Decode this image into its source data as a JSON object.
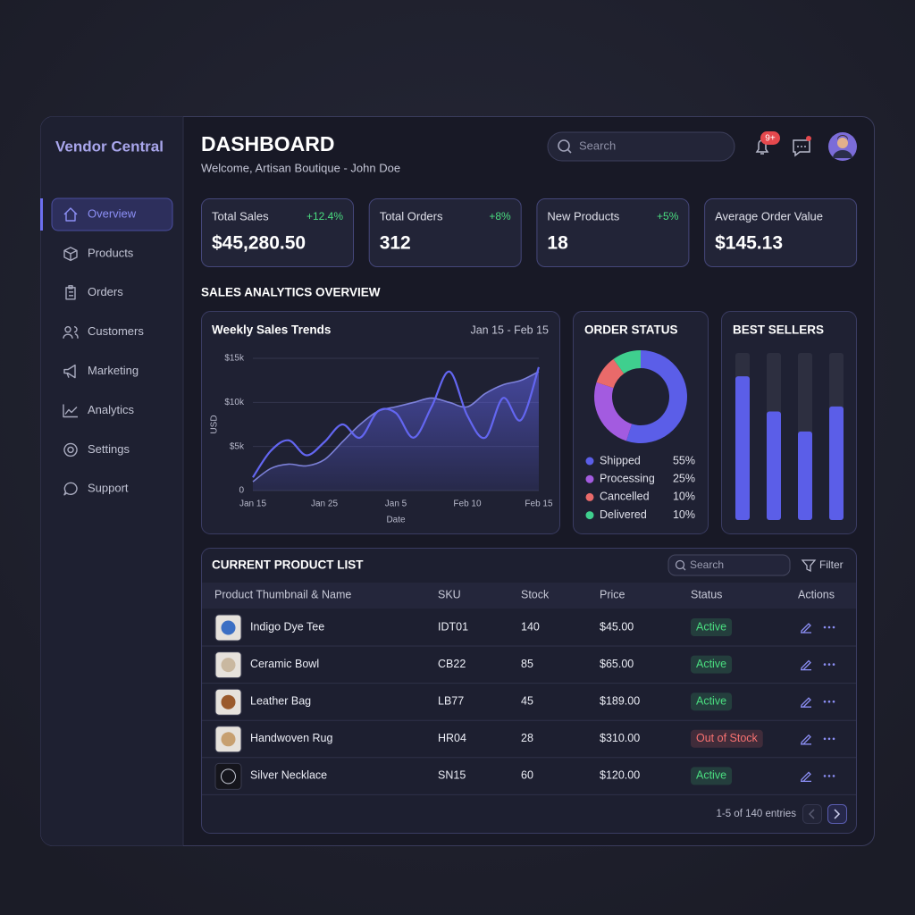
{
  "sidebar": {
    "brand": "Vendor Central",
    "nav": [
      "Overview",
      "Products",
      "Orders",
      "Customers",
      "Marketing",
      "Analytics",
      "Settings",
      "Support"
    ],
    "active": 0
  },
  "header": {
    "title": "DASHBOARD",
    "subtitle": "Welcome, Artisan Boutique - John Doe",
    "search": "Search",
    "badge": "9+"
  },
  "kpis": [
    {
      "label": "Total Sales",
      "change": "+12.4%",
      "value": "$45,280.50"
    },
    {
      "label": "Total Orders",
      "change": "+8%",
      "value": 312
    },
    {
      "label": "New Products",
      "change": "+5%",
      "value": 18
    },
    {
      "label": "Average Order Value",
      "value": "$145.13"
    }
  ],
  "section_title": "SALES ANALYTICS OVERVIEW",
  "chart_data": [
    {
      "type": "line",
      "title": "Weekly Sales Trends",
      "subtitle": "Jan 15 - Feb 15",
      "x_label": "Date",
      "y_label": "USD",
      "categories": [
        "Jan 15",
        null,
        null,
        null,
        "Jan 25",
        null,
        null,
        null,
        "Jan 5",
        null,
        null,
        null,
        "Feb 10",
        null,
        null,
        null,
        "Feb 15"
      ],
      "series": [
        {
          "color": "#8b8ff0",
          "area": true,
          "values": [
            1000,
            2500,
            3000,
            2800,
            3500,
            5500,
            7500,
            9000,
            9500,
            10000,
            10500,
            10000,
            9500,
            11000,
            12000,
            12500,
            13500
          ]
        },
        {
          "color": "#6366f1",
          "values": [
            1500,
            4500,
            5700,
            4000,
            5500,
            7500,
            6000,
            9000,
            8800,
            6000,
            9500,
            13500,
            8500,
            6000,
            10500,
            8000,
            14000
          ]
        }
      ],
      "ylim": [
        0,
        15000
      ],
      "yticks": [
        0,
        {
          "value": 5000,
          "label": "$5k"
        },
        {
          "value": 10000,
          "label": "$10k"
        },
        {
          "value": 15000,
          "label": "$15k"
        }
      ],
      "grid": true
    },
    {
      "type": "donut",
      "title": "ORDER STATUS",
      "categories": [
        "Shipped",
        "Processing",
        "Cancelled",
        "Delivered"
      ],
      "values": [
        55,
        25,
        10,
        10
      ],
      "value_labels": [
        "55%",
        "25%",
        "10%",
        "10%"
      ],
      "colors": [
        "#5b5ee8",
        "#a35be0",
        "#e96a6a",
        "#3fcf8e"
      ]
    },
    {
      "type": "bar",
      "title": "BEST SELLERS",
      "categories": [
        null,
        null,
        null,
        null
      ],
      "values": [
        86,
        65,
        53,
        68
      ],
      "ylim": [
        0,
        100
      ],
      "color": "#5b5ee8"
    }
  ],
  "table": {
    "title": "CURRENT PRODUCT LIST",
    "search": "Search",
    "filter": "Filter",
    "columns": [
      "Product Thumbnail & Name",
      "SKU",
      "Stock",
      "Price",
      "Status",
      "Actions"
    ],
    "rows": [
      {
        "name": "Indigo Dye Tee",
        "sku": "IDT01",
        "stock": 140,
        "price": "$45.00",
        "status": "Active",
        "status_color": "#4ade80"
      },
      {
        "name": "Ceramic Bowl",
        "sku": "CB22",
        "stock": 85,
        "price": "$65.00",
        "status": "Active",
        "status_color": "#4ade80"
      },
      {
        "name": "Leather Bag",
        "sku": "LB77",
        "stock": 45,
        "price": "$189.00",
        "status": "Active",
        "status_color": "#4ade80"
      },
      {
        "name": "Handwoven Rug",
        "sku": "HR04",
        "stock": 28,
        "price": "$310.00",
        "status": "Out of Stock",
        "status_color": "#f87171"
      },
      {
        "name": "Silver Necklace",
        "sku": "SN15",
        "stock": 60,
        "price": "$120.00",
        "status": "Active",
        "status_color": "#4ade80"
      }
    ],
    "footer": "1-5 of 140 entries"
  }
}
